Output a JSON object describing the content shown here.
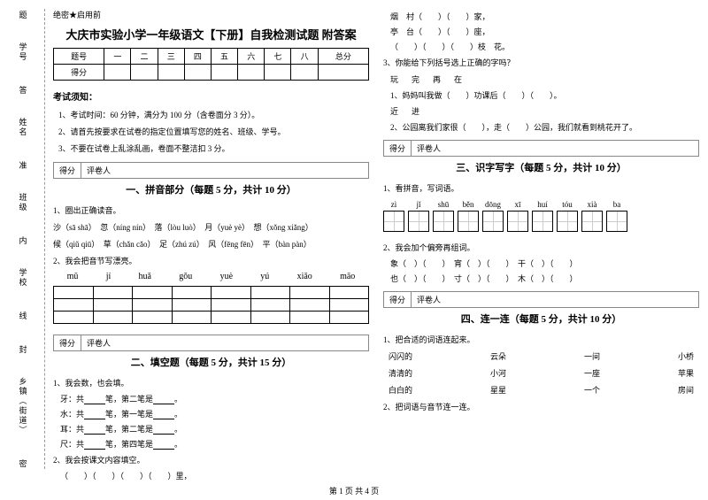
{
  "side": {
    "l1": "学号",
    "l2": "姓名",
    "l3": "班级",
    "l4": "学校",
    "l5": "乡镇（街道）",
    "m1": "题",
    "m2": "答",
    "m3": "准",
    "m4": "不",
    "m5": "内",
    "m6": "线",
    "m7": "封",
    "m8": "密"
  },
  "secret": "绝密★启用前",
  "title": "大庆市实验小学一年级语文【下册】自我检测试题 附答案",
  "score_header": [
    "题号",
    "一",
    "二",
    "三",
    "四",
    "五",
    "六",
    "七",
    "八",
    "总分"
  ],
  "score_row": "得分",
  "notice_head": "考试须知：",
  "notice": {
    "n1": "1、考试时间：60 分钟，满分为 100 分（含卷面分 3 分）。",
    "n2": "2、请首先按要求在试卷的指定位置填写您的姓名、班级、学号。",
    "n3": "3、不要在试卷上乱涂乱画，卷面不整洁扣 3 分。"
  },
  "defen1": "得分",
  "defen2": "评卷人",
  "sec1": "一、拼音部分（每题 5 分，共计 10 分）",
  "q1_1": "1、圈出正确读音。",
  "py_line1": "沙（sā shā）　忽（níng nín）　落（lòu luò）　月（yuè yè）　想（xǒng xiǎng）",
  "py_line2": "候（qiǔ qiū）　草（chǎn cǎo）　足（zhú zú）　风（fēng fēn）　平（bàn pàn）",
  "q1_2": "2、我会把音节写漂亮。",
  "pinyin": [
    "mǔ",
    "jí",
    "huǎ",
    "gǒu",
    "yuè",
    "yú",
    "xiǎo",
    "māo"
  ],
  "sec2": "二、填空题（每题 5 分，共计 15 分）",
  "q2_1": "1、我会数，也会填。",
  "fill": {
    "f1a": "牙：共",
    "f1b": "笔，第二笔是",
    "f1c": "。",
    "f2a": "水：共",
    "f2b": "笔，第一笔是",
    "f2c": "。",
    "f3a": "耳：共",
    "f3b": "笔，第二笔是",
    "f3c": "。",
    "f4a": "尺：共",
    "f4b": "笔，第四笔是",
    "f4c": "。"
  },
  "q2_2": "2、我会按课文内容填空。",
  "kewen": "（　　）（　　）（　　）（　　）里，",
  "right": {
    "r1": "烟　村（　　）（　　）家，",
    "r2": "亭　台（　　）（　　）座，",
    "r3": "（　　）（　　）（　　）枝　花。"
  },
  "q3": "3、你能给下列括号选上正确的字吗？",
  "idiom": "玩　完　再　在",
  "q3_1": "1、妈妈叫我做（　　）功课后（　　）（　　）。",
  "q3_sub": "近　进",
  "q3_2": "2、公园离我们家很（　　），走（　　）公园，我们就看到桃花开了。",
  "sec3": "三、识字写字（每题 5 分，共计 10 分）",
  "q3h": "1、看拼音，写词语。",
  "hanzi_py": [
    "zì",
    "jǐ",
    "shū",
    "běn",
    "dōng",
    "xī",
    "huí",
    "tóu",
    "xià",
    "ba"
  ],
  "q3_2h": "2、我会加个偏旁再组词。",
  "pf1": "象（　）（　　）　宵（　）（　　）　干（　）（　　）",
  "pf2": "也（　）（　　）　寸（　）（　　）　木（　）（　　）",
  "sec4": "四、连一连（每题 5 分，共计 10 分）",
  "q4_1": "1、把合适的词语连起来。",
  "link": {
    "a1": "闪闪的",
    "a2": "云朵",
    "a3": "一间",
    "a4": "小桥",
    "b1": "清清的",
    "b2": "小河",
    "b3": "一座",
    "b4": "苹果",
    "c1": "白白的",
    "c2": "星星",
    "c3": "一个",
    "c4": "房间"
  },
  "q4_2": "2、把词语与音节连一连。",
  "footer": "第 1 页 共 4 页"
}
